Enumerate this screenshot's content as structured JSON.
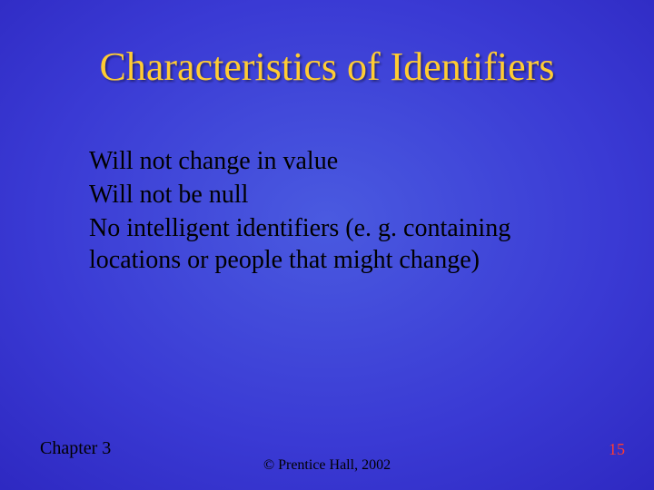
{
  "slide": {
    "title": "Characteristics of Identifiers",
    "title_color": "#ffcc33",
    "title_fontsize": 44,
    "body_fontsize": 28,
    "body_color": "#000000",
    "bullets": [
      "Will not change in value",
      "Will not be null",
      "No intelligent identifiers (e. g. containing locations or people that might change)"
    ],
    "footer_left": "Chapter 3",
    "footer_center": "© Prentice Hall, 2002",
    "page_number": "15",
    "page_number_color": "#ff3b30",
    "background_gradient": {
      "inner": "#4a5ae0",
      "mid": "#2820b8",
      "outer": "#180a90"
    }
  }
}
